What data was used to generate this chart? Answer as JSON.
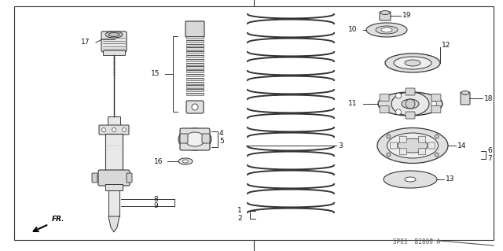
{
  "bg_color": "#ffffff",
  "border_color": "#333333",
  "line_color": "#333333",
  "text_color": "#111111",
  "watermark": "SP03  B2800 A",
  "fr_label": "FR.",
  "font_size_labels": 6.5,
  "font_size_watermark": 5.5,
  "figsize": [
    6.4,
    3.19
  ],
  "dpi": 100
}
